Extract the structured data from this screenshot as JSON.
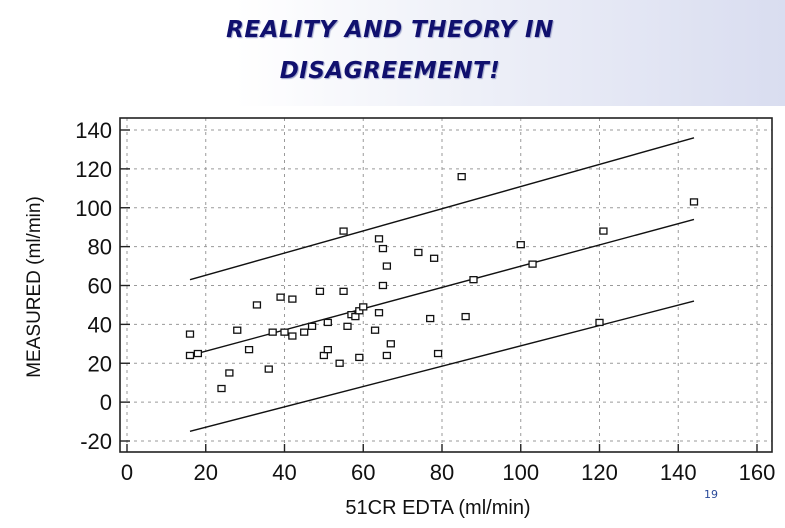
{
  "title_lines": [
    "REALITY AND THEORY IN",
    "DISAGREEMENT!"
  ],
  "page_number": "19",
  "chart_data": {
    "type": "scatter",
    "xlabel": "51CR EDTA (ml/min)",
    "ylabel": "MEASURED (ml/min)",
    "xlim": [
      0,
      160
    ],
    "ylim": [
      -20,
      140
    ],
    "x_ticks": [
      "0",
      "20",
      "40",
      "60",
      "80",
      "100",
      "120",
      "140",
      "160"
    ],
    "y_ticks": [
      "140",
      "120",
      "100",
      "80",
      "60",
      "40",
      "20",
      "0",
      "-20"
    ],
    "grid": true,
    "points": [
      {
        "x": 16,
        "y": 24
      },
      {
        "x": 16,
        "y": 35
      },
      {
        "x": 18,
        "y": 25
      },
      {
        "x": 24,
        "y": 7
      },
      {
        "x": 26,
        "y": 15
      },
      {
        "x": 28,
        "y": 37
      },
      {
        "x": 31,
        "y": 27
      },
      {
        "x": 33,
        "y": 50
      },
      {
        "x": 36,
        "y": 17
      },
      {
        "x": 37,
        "y": 36
      },
      {
        "x": 39,
        "y": 54
      },
      {
        "x": 40,
        "y": 36
      },
      {
        "x": 42,
        "y": 53
      },
      {
        "x": 42,
        "y": 34
      },
      {
        "x": 45,
        "y": 36
      },
      {
        "x": 47,
        "y": 39
      },
      {
        "x": 49,
        "y": 57
      },
      {
        "x": 50,
        "y": 24
      },
      {
        "x": 51,
        "y": 41
      },
      {
        "x": 51,
        "y": 27
      },
      {
        "x": 54,
        "y": 20
      },
      {
        "x": 55,
        "y": 57
      },
      {
        "x": 55,
        "y": 88
      },
      {
        "x": 56,
        "y": 39
      },
      {
        "x": 57,
        "y": 45
      },
      {
        "x": 58,
        "y": 44
      },
      {
        "x": 59,
        "y": 47
      },
      {
        "x": 59,
        "y": 23
      },
      {
        "x": 60,
        "y": 49
      },
      {
        "x": 63,
        "y": 37
      },
      {
        "x": 64,
        "y": 46
      },
      {
        "x": 64,
        "y": 84
      },
      {
        "x": 65,
        "y": 60
      },
      {
        "x": 65,
        "y": 79
      },
      {
        "x": 66,
        "y": 70
      },
      {
        "x": 66,
        "y": 24
      },
      {
        "x": 67,
        "y": 30
      },
      {
        "x": 74,
        "y": 77
      },
      {
        "x": 77,
        "y": 43
      },
      {
        "x": 78,
        "y": 74
      },
      {
        "x": 79,
        "y": 25
      },
      {
        "x": 85,
        "y": 116
      },
      {
        "x": 86,
        "y": 44
      },
      {
        "x": 88,
        "y": 63
      },
      {
        "x": 100,
        "y": 81
      },
      {
        "x": 103,
        "y": 71
      },
      {
        "x": 120,
        "y": 41
      },
      {
        "x": 121,
        "y": 88
      },
      {
        "x": 144,
        "y": 103
      }
    ],
    "lines": [
      {
        "x": [
          16,
          144
        ],
        "y": [
          63,
          136
        ]
      },
      {
        "x": [
          16,
          144
        ],
        "y": [
          24,
          94
        ]
      },
      {
        "x": [
          16,
          144
        ],
        "y": [
          -15,
          52
        ]
      }
    ]
  }
}
